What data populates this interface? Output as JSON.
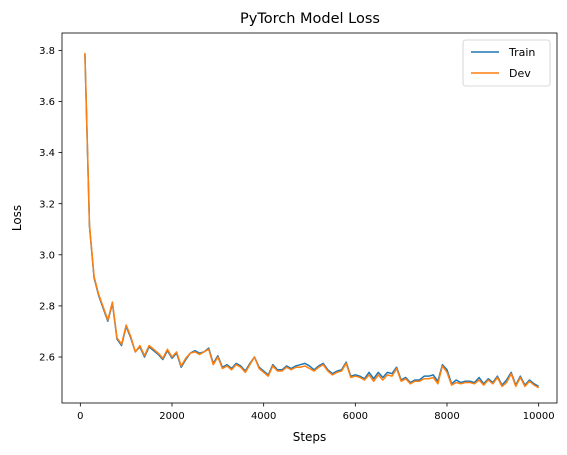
{
  "chart_data": {
    "type": "line",
    "title": "PyTorch Model Loss",
    "xlabel": "Steps",
    "ylabel": "Loss",
    "xlim": [
      -400,
      10400
    ],
    "ylim": [
      2.42,
      3.868
    ],
    "xticks": [
      0,
      2000,
      4000,
      6000,
      8000,
      10000
    ],
    "xtick_labels": [
      "0",
      "2000",
      "4000",
      "6000",
      "8000",
      "10000"
    ],
    "yticks": [
      2.6,
      2.8,
      3.0,
      3.2,
      3.4,
      3.6,
      3.8
    ],
    "ytick_labels": [
      "2.6",
      "2.8",
      "3.0",
      "3.2",
      "3.4",
      "3.6",
      "3.8"
    ],
    "grid": false,
    "legend_position": "top-right",
    "x": [
      100,
      200,
      300,
      400,
      500,
      600,
      700,
      800,
      900,
      1000,
      1100,
      1200,
      1300,
      1400,
      1500,
      1600,
      1700,
      1800,
      1900,
      2000,
      2100,
      2200,
      2300,
      2400,
      2500,
      2600,
      2700,
      2800,
      2900,
      3000,
      3100,
      3200,
      3300,
      3400,
      3500,
      3600,
      3700,
      3800,
      3900,
      4000,
      4100,
      4200,
      4300,
      4400,
      4500,
      4600,
      4700,
      4800,
      4900,
      5000,
      5100,
      5200,
      5300,
      5400,
      5500,
      5600,
      5700,
      5800,
      5900,
      6000,
      6100,
      6200,
      6300,
      6400,
      6500,
      6600,
      6700,
      6800,
      6900,
      7000,
      7100,
      7200,
      7300,
      7400,
      7500,
      7600,
      7700,
      7800,
      7900,
      8000,
      8100,
      8200,
      8300,
      8400,
      8500,
      8600,
      8700,
      8800,
      8900,
      9000,
      9100,
      9200,
      9300,
      9400,
      9500,
      9600,
      9700,
      9800,
      9900,
      10000
    ],
    "series": [
      {
        "name": "Train",
        "color": "#1f77b4",
        "values": [
          3.785,
          3.11,
          2.91,
          2.84,
          2.79,
          2.74,
          2.81,
          2.67,
          2.645,
          2.72,
          2.675,
          2.62,
          2.64,
          2.6,
          2.64,
          2.625,
          2.61,
          2.59,
          2.625,
          2.595,
          2.615,
          2.56,
          2.59,
          2.615,
          2.625,
          2.615,
          2.62,
          2.635,
          2.575,
          2.605,
          2.56,
          2.57,
          2.555,
          2.575,
          2.565,
          2.545,
          2.575,
          2.6,
          2.56,
          2.545,
          2.53,
          2.57,
          2.55,
          2.55,
          2.565,
          2.555,
          2.565,
          2.57,
          2.575,
          2.565,
          2.55,
          2.565,
          2.575,
          2.55,
          2.535,
          2.545,
          2.55,
          2.58,
          2.525,
          2.53,
          2.525,
          2.515,
          2.54,
          2.515,
          2.54,
          2.52,
          2.54,
          2.535,
          2.56,
          2.51,
          2.52,
          2.5,
          2.51,
          2.51,
          2.525,
          2.525,
          2.53,
          2.505,
          2.57,
          2.55,
          2.495,
          2.51,
          2.5,
          2.505,
          2.505,
          2.5,
          2.52,
          2.495,
          2.515,
          2.5,
          2.525,
          2.49,
          2.51,
          2.54,
          2.49,
          2.525,
          2.49,
          2.51,
          2.495,
          2.485
        ]
      },
      {
        "name": "Dev",
        "color": "#ff7f0e",
        "values": [
          3.79,
          3.115,
          2.915,
          2.845,
          2.795,
          2.745,
          2.815,
          2.675,
          2.65,
          2.725,
          2.68,
          2.62,
          2.645,
          2.605,
          2.645,
          2.63,
          2.615,
          2.595,
          2.63,
          2.6,
          2.62,
          2.565,
          2.595,
          2.615,
          2.62,
          2.61,
          2.62,
          2.63,
          2.57,
          2.6,
          2.555,
          2.565,
          2.55,
          2.57,
          2.56,
          2.54,
          2.57,
          2.6,
          2.555,
          2.54,
          2.525,
          2.565,
          2.545,
          2.545,
          2.56,
          2.55,
          2.56,
          2.56,
          2.565,
          2.555,
          2.545,
          2.56,
          2.57,
          2.545,
          2.53,
          2.54,
          2.545,
          2.575,
          2.52,
          2.525,
          2.52,
          2.51,
          2.53,
          2.505,
          2.53,
          2.51,
          2.53,
          2.525,
          2.555,
          2.505,
          2.515,
          2.495,
          2.505,
          2.505,
          2.515,
          2.515,
          2.52,
          2.495,
          2.565,
          2.54,
          2.49,
          2.5,
          2.495,
          2.5,
          2.5,
          2.495,
          2.51,
          2.49,
          2.51,
          2.495,
          2.52,
          2.485,
          2.5,
          2.535,
          2.485,
          2.52,
          2.485,
          2.505,
          2.49,
          2.48
        ]
      }
    ]
  }
}
